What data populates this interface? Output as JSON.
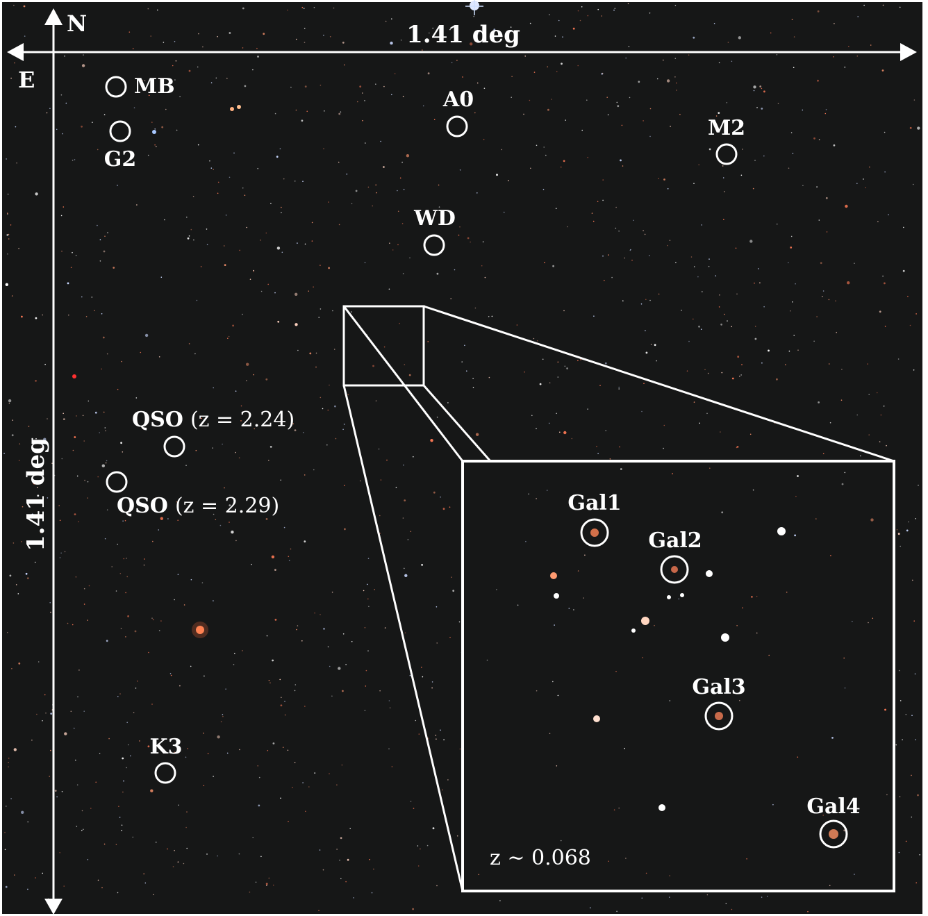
{
  "compass": {
    "north": "N",
    "east": "E"
  },
  "scale": {
    "horizontal": "1.41 deg",
    "vertical": "1.41 deg"
  },
  "objects": [
    {
      "id": "mb",
      "name": "MB",
      "suffix": ""
    },
    {
      "id": "g2",
      "name": "G2",
      "suffix": ""
    },
    {
      "id": "a0",
      "name": "A0",
      "suffix": ""
    },
    {
      "id": "m2",
      "name": "M2",
      "suffix": ""
    },
    {
      "id": "wd",
      "name": "WD",
      "suffix": ""
    },
    {
      "id": "qso1",
      "name": "QSO",
      "suffix": "(z = 2.24)"
    },
    {
      "id": "qso2",
      "name": "QSO",
      "suffix": "(z = 2.29)"
    },
    {
      "id": "k3",
      "name": "K3",
      "suffix": ""
    }
  ],
  "inset": {
    "galaxies": [
      {
        "id": "gal1",
        "name": "Gal1"
      },
      {
        "id": "gal2",
        "name": "Gal2"
      },
      {
        "id": "gal3",
        "name": "Gal3"
      },
      {
        "id": "gal4",
        "name": "Gal4"
      }
    ],
    "redshift_note": "z ∼ 0.068"
  },
  "colors": {
    "sky": "#161717",
    "annotation": "#ffffff",
    "star_red": "#e0603a",
    "star_blue": "#a8c8ff"
  }
}
